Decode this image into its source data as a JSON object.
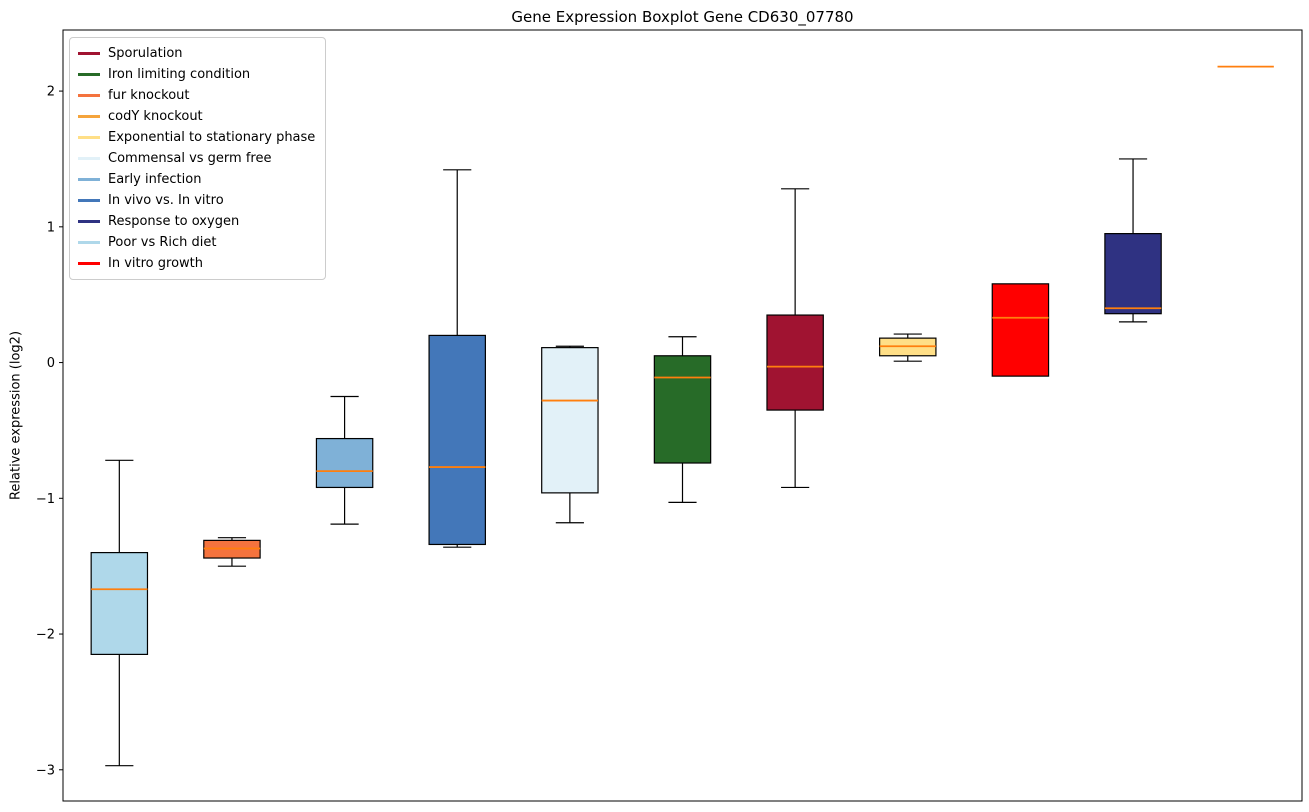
{
  "title": "Gene Expression Boxplot Gene CD630_07780",
  "ylabel": "Relative expression (log2)",
  "chart_data": {
    "type": "boxplot",
    "title": "Gene Expression Boxplot Gene CD630_07780",
    "xlabel": "",
    "ylabel": "Relative expression (log2)",
    "ylim": [
      -3.23,
      2.45
    ],
    "yticks": [
      2,
      1,
      0,
      -1,
      -2,
      -3
    ],
    "xtick_labels": [],
    "grid": false,
    "legend_position": "upper left",
    "median_color": "#FF7F0E",
    "box_edge_color": "#000000",
    "series": [
      {
        "name": "Poor vs Rich diet",
        "color": "#AFD8EA",
        "low": -2.97,
        "q1": -2.15,
        "median": -1.67,
        "q3": -1.4,
        "high": -0.72
      },
      {
        "name": "fur knockout",
        "color": "#F4733E",
        "low": -1.5,
        "q1": -1.44,
        "median": -1.37,
        "q3": -1.31,
        "high": -1.29
      },
      {
        "name": "Early infection",
        "color": "#7FB1D7",
        "low": -1.19,
        "q1": -0.92,
        "median": -0.8,
        "q3": -0.56,
        "high": -0.25
      },
      {
        "name": "In vivo vs. In vitro",
        "color": "#4377B9",
        "low": -1.36,
        "q1": -1.34,
        "median": -0.77,
        "q3": 0.2,
        "high": 1.42
      },
      {
        "name": "Commensal vs germ free",
        "color": "#E2F1F8",
        "low": -1.18,
        "q1": -0.96,
        "median": -0.28,
        "q3": 0.11,
        "high": 0.12
      },
      {
        "name": "Iron limiting condition",
        "color": "#276B28",
        "low": -1.03,
        "q1": -0.74,
        "median": -0.11,
        "q3": 0.05,
        "high": 0.19
      },
      {
        "name": "Sporulation",
        "color": "#A01331",
        "low": -0.92,
        "q1": -0.35,
        "median": -0.03,
        "q3": 0.35,
        "high": 1.28
      },
      {
        "name": "Exponential to stationary phase",
        "color": "#FFDF87",
        "low": 0.01,
        "q1": 0.05,
        "median": 0.12,
        "q3": 0.18,
        "high": 0.21
      },
      {
        "name": "In vitro growth",
        "color": "#FF0000",
        "low": -0.1,
        "q1": -0.1,
        "median": 0.33,
        "q3": 0.58,
        "high": 0.58
      },
      {
        "name": "Response to oxygen",
        "color": "#2F3282",
        "low": 0.3,
        "q1": 0.36,
        "median": 0.4,
        "q3": 0.95,
        "high": 1.5
      },
      {
        "name": "codY knockout",
        "color": "#F5A43C",
        "low": 2.18,
        "q1": 2.18,
        "median": 2.18,
        "q3": 2.18,
        "high": 2.18
      }
    ],
    "legend": [
      {
        "label": "Sporulation",
        "color": "#A01331"
      },
      {
        "label": "Iron limiting condition",
        "color": "#276B28"
      },
      {
        "label": "fur knockout",
        "color": "#F4733E"
      },
      {
        "label": "codY knockout",
        "color": "#F5A43C"
      },
      {
        "label": "Exponential to stationary phase",
        "color": "#FFDF87"
      },
      {
        "label": "Commensal vs germ free",
        "color": "#E2F1F8"
      },
      {
        "label": "Early infection",
        "color": "#7FB1D7"
      },
      {
        "label": "In vivo vs. In vitro",
        "color": "#4377B9"
      },
      {
        "label": "Response to oxygen",
        "color": "#2F3282"
      },
      {
        "label": "Poor vs Rich diet",
        "color": "#AFD8EA"
      },
      {
        "label": "In vitro growth",
        "color": "#FF0000"
      }
    ]
  }
}
